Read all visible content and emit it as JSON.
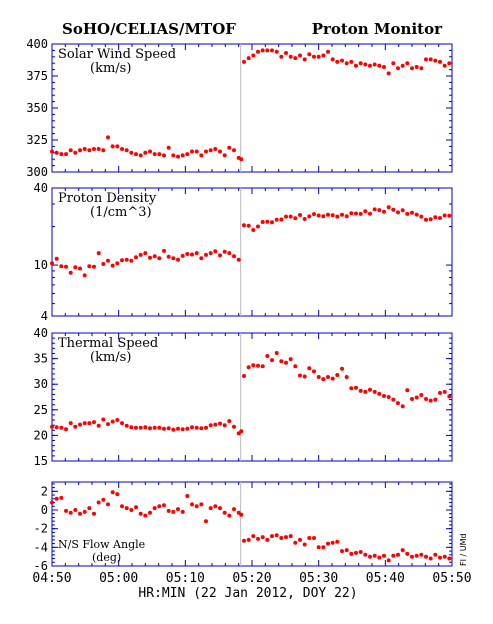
{
  "header": {
    "left": "SoHO/CELIAS/MTOF",
    "right": "Proton Monitor"
  },
  "x_axis": {
    "label": "HR:MIN (22 Jan 2012, DOY 22)",
    "ticks": [
      "04:50",
      "05:00",
      "05:10",
      "05:20",
      "05:30",
      "05:40",
      "05:50"
    ]
  },
  "credit": "FI / UMd",
  "colors": {
    "data": "#ff0000",
    "frame": "#0000cc",
    "marker_line": "#bbbbbb"
  },
  "chart_data": [
    {
      "type": "scatter",
      "name": "Solar Wind Speed",
      "label_line1": "Solar Wind Speed",
      "label_line2": "(km/s)",
      "ylim": [
        300,
        400
      ],
      "yticks": [
        "300",
        "325",
        "350",
        "375",
        "400"
      ],
      "scale": "linear",
      "shock_x": 28.3,
      "points": [
        [
          0,
          316
        ],
        [
          0.7,
          315
        ],
        [
          1.4,
          314
        ],
        [
          2.1,
          314
        ],
        [
          2.8,
          317
        ],
        [
          3.5,
          315
        ],
        [
          4.2,
          317
        ],
        [
          4.9,
          318
        ],
        [
          5.6,
          317
        ],
        [
          6.3,
          318
        ],
        [
          7,
          318
        ],
        [
          7.7,
          317
        ],
        [
          8.4,
          327
        ],
        [
          9.1,
          320
        ],
        [
          9.8,
          320
        ],
        [
          10.5,
          318
        ],
        [
          11.2,
          317
        ],
        [
          11.9,
          315
        ],
        [
          12.6,
          314
        ],
        [
          13.3,
          313
        ],
        [
          14,
          315
        ],
        [
          14.7,
          316
        ],
        [
          15.4,
          314
        ],
        [
          16.1,
          314
        ],
        [
          16.8,
          313
        ],
        [
          17.5,
          319
        ],
        [
          18.2,
          313
        ],
        [
          18.9,
          312
        ],
        [
          19.6,
          313
        ],
        [
          20.3,
          314
        ],
        [
          21,
          316
        ],
        [
          21.7,
          316
        ],
        [
          22.4,
          313
        ],
        [
          23.1,
          316
        ],
        [
          23.8,
          317
        ],
        [
          24.5,
          318
        ],
        [
          25.2,
          316
        ],
        [
          25.9,
          313
        ],
        [
          26.6,
          319
        ],
        [
          27.3,
          317
        ],
        [
          28,
          311
        ],
        [
          28.4,
          310
        ],
        [
          28.8,
          386
        ],
        [
          29.5,
          389
        ],
        [
          30.2,
          391
        ],
        [
          30.9,
          394
        ],
        [
          31.6,
          395
        ],
        [
          32.3,
          395
        ],
        [
          33,
          395
        ],
        [
          33.7,
          394
        ],
        [
          34.4,
          390
        ],
        [
          35.1,
          393
        ],
        [
          35.8,
          390
        ],
        [
          36.5,
          389
        ],
        [
          37.2,
          391
        ],
        [
          37.9,
          388
        ],
        [
          38.6,
          392
        ],
        [
          39.3,
          390
        ],
        [
          40,
          390
        ],
        [
          40.7,
          391
        ],
        [
          41.4,
          394
        ],
        [
          42.1,
          388
        ],
        [
          42.8,
          386
        ],
        [
          43.5,
          387
        ],
        [
          44.2,
          385
        ],
        [
          44.9,
          386
        ],
        [
          45.6,
          383
        ],
        [
          46.3,
          385
        ],
        [
          47,
          384
        ],
        [
          47.7,
          383
        ],
        [
          48.4,
          384
        ],
        [
          49.1,
          383
        ],
        [
          49.8,
          382
        ],
        [
          50.5,
          377
        ],
        [
          51.2,
          385
        ],
        [
          51.9,
          381
        ],
        [
          52.6,
          383
        ],
        [
          53.3,
          385
        ],
        [
          54,
          381
        ],
        [
          54.7,
          382
        ],
        [
          55.4,
          381
        ],
        [
          56.1,
          388
        ],
        [
          56.8,
          388
        ],
        [
          57.5,
          387
        ],
        [
          58.2,
          386
        ],
        [
          58.9,
          383
        ],
        [
          59.6,
          385
        ]
      ]
    },
    {
      "type": "scatter",
      "name": "Proton Density",
      "label_line1": "Proton Density",
      "label_line2": "(1/cm^3)",
      "ylim": [
        4,
        40
      ],
      "yticks": [
        "4",
        "10",
        "40"
      ],
      "scale": "log",
      "shock_x": 28.3,
      "points": [
        [
          0,
          10.3
        ],
        [
          0.7,
          11.2
        ],
        [
          1.4,
          9.8
        ],
        [
          2.1,
          9.7
        ],
        [
          2.8,
          8.7
        ],
        [
          3.5,
          9.6
        ],
        [
          4.2,
          9.4
        ],
        [
          4.9,
          8.3
        ],
        [
          5.6,
          9.8
        ],
        [
          6.3,
          9.7
        ],
        [
          7,
          12.4
        ],
        [
          7.7,
          10.2
        ],
        [
          8.4,
          10.8
        ],
        [
          9.1,
          9.9
        ],
        [
          9.8,
          10.3
        ],
        [
          10.5,
          10.9
        ],
        [
          11.2,
          11.0
        ],
        [
          11.9,
          10.8
        ],
        [
          12.6,
          11.5
        ],
        [
          13.3,
          12.0
        ],
        [
          14,
          12.4
        ],
        [
          14.7,
          11.4
        ],
        [
          15.4,
          11.7
        ],
        [
          16.1,
          11.3
        ],
        [
          16.8,
          12.9
        ],
        [
          17.5,
          11.6
        ],
        [
          18.2,
          11.3
        ],
        [
          18.9,
          11.0
        ],
        [
          19.6,
          11.8
        ],
        [
          20.3,
          12.2
        ],
        [
          21,
          12.1
        ],
        [
          21.7,
          12.4
        ],
        [
          22.4,
          11.3
        ],
        [
          23.1,
          12.0
        ],
        [
          23.8,
          12.4
        ],
        [
          24.5,
          12.8
        ],
        [
          25.2,
          11.9
        ],
        [
          25.9,
          12.7
        ],
        [
          26.6,
          12.4
        ],
        [
          27.3,
          11.7
        ],
        [
          28,
          11.0
        ],
        [
          28.8,
          20.5
        ],
        [
          29.5,
          20.3
        ],
        [
          30.2,
          18.8
        ],
        [
          30.9,
          20.0
        ],
        [
          31.6,
          21.7
        ],
        [
          32.3,
          21.8
        ],
        [
          33,
          21.6
        ],
        [
          33.7,
          22.6
        ],
        [
          34.4,
          22.7
        ],
        [
          35.1,
          23.9
        ],
        [
          35.8,
          23.9
        ],
        [
          36.5,
          23.2
        ],
        [
          37.2,
          24.6
        ],
        [
          37.9,
          22.9
        ],
        [
          38.6,
          24.0
        ],
        [
          39.3,
          25.0
        ],
        [
          40,
          24.4
        ],
        [
          40.7,
          24.1
        ],
        [
          41.4,
          24.7
        ],
        [
          42.1,
          24.5
        ],
        [
          42.8,
          23.9
        ],
        [
          43.5,
          24.7
        ],
        [
          44.2,
          24.1
        ],
        [
          44.9,
          25.4
        ],
        [
          45.6,
          25.3
        ],
        [
          46.3,
          25.1
        ],
        [
          47,
          26.3
        ],
        [
          47.7,
          25.2
        ],
        [
          48.4,
          27.2
        ],
        [
          49.1,
          26.9
        ],
        [
          49.8,
          26.1
        ],
        [
          50.5,
          28.3
        ],
        [
          51.2,
          27.0
        ],
        [
          51.9,
          25.8
        ],
        [
          52.6,
          26.8
        ],
        [
          53.3,
          25.1
        ],
        [
          54,
          25.6
        ],
        [
          54.7,
          24.8
        ],
        [
          55.4,
          23.9
        ],
        [
          56.1,
          22.6
        ],
        [
          56.8,
          22.8
        ],
        [
          57.5,
          23.6
        ],
        [
          58.2,
          23.3
        ],
        [
          58.9,
          24.4
        ],
        [
          59.6,
          24.3
        ]
      ]
    },
    {
      "type": "scatter",
      "name": "Thermal Speed",
      "label_line1": "Thermal Speed",
      "label_line2": "(km/s)",
      "ylim": [
        15,
        40
      ],
      "yticks": [
        "15",
        "20",
        "25",
        "30",
        "35",
        "40"
      ],
      "scale": "linear",
      "shock_x": 28.3,
      "points": [
        [
          0,
          21.7
        ],
        [
          0.7,
          21.6
        ],
        [
          1.4,
          21.5
        ],
        [
          2.1,
          21.2
        ],
        [
          2.8,
          22.4
        ],
        [
          3.5,
          21.7
        ],
        [
          4.2,
          22.1
        ],
        [
          4.9,
          22.4
        ],
        [
          5.6,
          22.4
        ],
        [
          6.3,
          22.6
        ],
        [
          7,
          21.9
        ],
        [
          7.7,
          23.1
        ],
        [
          8.4,
          22.2
        ],
        [
          9.1,
          22.7
        ],
        [
          9.8,
          23.0
        ],
        [
          10.5,
          22.4
        ],
        [
          11.2,
          21.9
        ],
        [
          11.9,
          21.6
        ],
        [
          12.6,
          21.5
        ],
        [
          13.3,
          21.5
        ],
        [
          14,
          21.6
        ],
        [
          14.7,
          21.4
        ],
        [
          15.4,
          21.5
        ],
        [
          16.1,
          21.5
        ],
        [
          16.8,
          21.3
        ],
        [
          17.5,
          21.4
        ],
        [
          18.2,
          21.1
        ],
        [
          18.9,
          21.3
        ],
        [
          19.6,
          21.2
        ],
        [
          20.3,
          21.3
        ],
        [
          21,
          21.6
        ],
        [
          21.7,
          21.5
        ],
        [
          22.4,
          21.4
        ],
        [
          23.1,
          21.5
        ],
        [
          23.8,
          22.0
        ],
        [
          24.5,
          22.1
        ],
        [
          25.2,
          22.3
        ],
        [
          25.9,
          22.0
        ],
        [
          26.6,
          22.8
        ],
        [
          27.3,
          21.7
        ],
        [
          28,
          20.4
        ],
        [
          28.4,
          20.8
        ],
        [
          28.8,
          31.6
        ],
        [
          29.5,
          33.3
        ],
        [
          30.2,
          33.7
        ],
        [
          30.9,
          33.6
        ],
        [
          31.6,
          33.5
        ],
        [
          32.3,
          35.5
        ],
        [
          33,
          34.7
        ],
        [
          33.7,
          36.1
        ],
        [
          34.4,
          34.5
        ],
        [
          35.1,
          34.2
        ],
        [
          35.8,
          34.9
        ],
        [
          36.5,
          33.5
        ],
        [
          37.2,
          31.7
        ],
        [
          37.9,
          31.5
        ],
        [
          38.6,
          33.1
        ],
        [
          39.3,
          32.5
        ],
        [
          40,
          31.4
        ],
        [
          40.7,
          31.0
        ],
        [
          41.4,
          31.4
        ],
        [
          42.1,
          31.1
        ],
        [
          42.8,
          31.8
        ],
        [
          43.5,
          33.0
        ],
        [
          44.2,
          31.4
        ],
        [
          44.9,
          29.2
        ],
        [
          45.6,
          29.3
        ],
        [
          46.3,
          28.7
        ],
        [
          47,
          28.5
        ],
        [
          47.7,
          28.9
        ],
        [
          48.4,
          28.5
        ],
        [
          49.1,
          28.1
        ],
        [
          49.8,
          27.7
        ],
        [
          50.5,
          27.5
        ],
        [
          51.2,
          27.0
        ],
        [
          51.9,
          26.3
        ],
        [
          52.6,
          25.7
        ],
        [
          53.3,
          28.8
        ],
        [
          54,
          27.1
        ],
        [
          54.7,
          27.4
        ],
        [
          55.4,
          27.9
        ],
        [
          56.1,
          27.1
        ],
        [
          56.8,
          26.8
        ],
        [
          57.5,
          27.0
        ],
        [
          58.2,
          28.3
        ],
        [
          58.9,
          28.5
        ],
        [
          59.6,
          27.6
        ]
      ]
    },
    {
      "type": "scatter",
      "name": "N/S Flow Angle",
      "label_line1": "N/S Flow Angle",
      "label_line2": "(deg)",
      "ylim": [
        -6,
        3
      ],
      "yticks": [
        "-6",
        "-4",
        "-2",
        "0",
        "2"
      ],
      "scale": "linear",
      "shock_x": 28.3,
      "points": [
        [
          0,
          0.8
        ],
        [
          0.7,
          1.2
        ],
        [
          1.4,
          1.3
        ],
        [
          2.1,
          -0.1
        ],
        [
          2.8,
          -0.3
        ],
        [
          3.5,
          0
        ],
        [
          4.2,
          -0.4
        ],
        [
          4.9,
          -0.2
        ],
        [
          5.6,
          0.2
        ],
        [
          6.3,
          -0.4
        ],
        [
          7,
          0.8
        ],
        [
          7.7,
          1.1
        ],
        [
          8.4,
          0.6
        ],
        [
          9.1,
          1.9
        ],
        [
          9.8,
          1.7
        ],
        [
          10.5,
          0.4
        ],
        [
          11.2,
          0.2
        ],
        [
          11.9,
          0
        ],
        [
          12.6,
          0.3
        ],
        [
          13.3,
          -0.4
        ],
        [
          14,
          -0.6
        ],
        [
          14.7,
          -0.3
        ],
        [
          15.4,
          0.2
        ],
        [
          16.1,
          0.4
        ],
        [
          16.8,
          0.5
        ],
        [
          17.5,
          -0.1
        ],
        [
          18.2,
          -0.2
        ],
        [
          18.9,
          0.1
        ],
        [
          19.6,
          -0.2
        ],
        [
          20.3,
          1.5
        ],
        [
          21,
          0.6
        ],
        [
          21.7,
          0.4
        ],
        [
          22.4,
          0.6
        ],
        [
          23.1,
          -1.2
        ],
        [
          23.8,
          0.2
        ],
        [
          24.5,
          0.4
        ],
        [
          25.2,
          0.2
        ],
        [
          25.9,
          -0.3
        ],
        [
          26.6,
          -0.6
        ],
        [
          27.3,
          0.1
        ],
        [
          28,
          -0.3
        ],
        [
          28.4,
          -0.5
        ],
        [
          28.8,
          -3.3
        ],
        [
          29.5,
          -3.2
        ],
        [
          30.2,
          -2.8
        ],
        [
          30.9,
          -3.1
        ],
        [
          31.6,
          -2.9
        ],
        [
          32.3,
          -3.2
        ],
        [
          33,
          -2.8
        ],
        [
          33.7,
          -2.7
        ],
        [
          34.4,
          -3.0
        ],
        [
          35.1,
          -2.9
        ],
        [
          35.8,
          -2.8
        ],
        [
          36.5,
          -3.5
        ],
        [
          37.2,
          -3.2
        ],
        [
          37.9,
          -3.7
        ],
        [
          38.6,
          -3.0
        ],
        [
          39.3,
          -3.0
        ],
        [
          40,
          -4.0
        ],
        [
          40.7,
          -4.0
        ],
        [
          41.4,
          -3.6
        ],
        [
          42.1,
          -3.5
        ],
        [
          42.8,
          -3.4
        ],
        [
          43.5,
          -4.4
        ],
        [
          44.2,
          -4.3
        ],
        [
          44.9,
          -4.7
        ],
        [
          45.6,
          -4.6
        ],
        [
          46.3,
          -4.5
        ],
        [
          47,
          -4.8
        ],
        [
          47.7,
          -5.0
        ],
        [
          48.4,
          -4.9
        ],
        [
          49.1,
          -5.1
        ],
        [
          49.8,
          -4.9
        ],
        [
          50.5,
          -5.4
        ],
        [
          51.2,
          -4.9
        ],
        [
          51.9,
          -4.8
        ],
        [
          52.6,
          -4.3
        ],
        [
          53.3,
          -4.7
        ],
        [
          54,
          -5.0
        ],
        [
          54.7,
          -4.9
        ],
        [
          55.4,
          -4.8
        ],
        [
          56.1,
          -5.0
        ],
        [
          56.8,
          -5.2
        ],
        [
          57.5,
          -4.8
        ],
        [
          58.2,
          -5.1
        ],
        [
          58.9,
          -5.0
        ],
        [
          59.6,
          -5.2
        ]
      ]
    }
  ]
}
